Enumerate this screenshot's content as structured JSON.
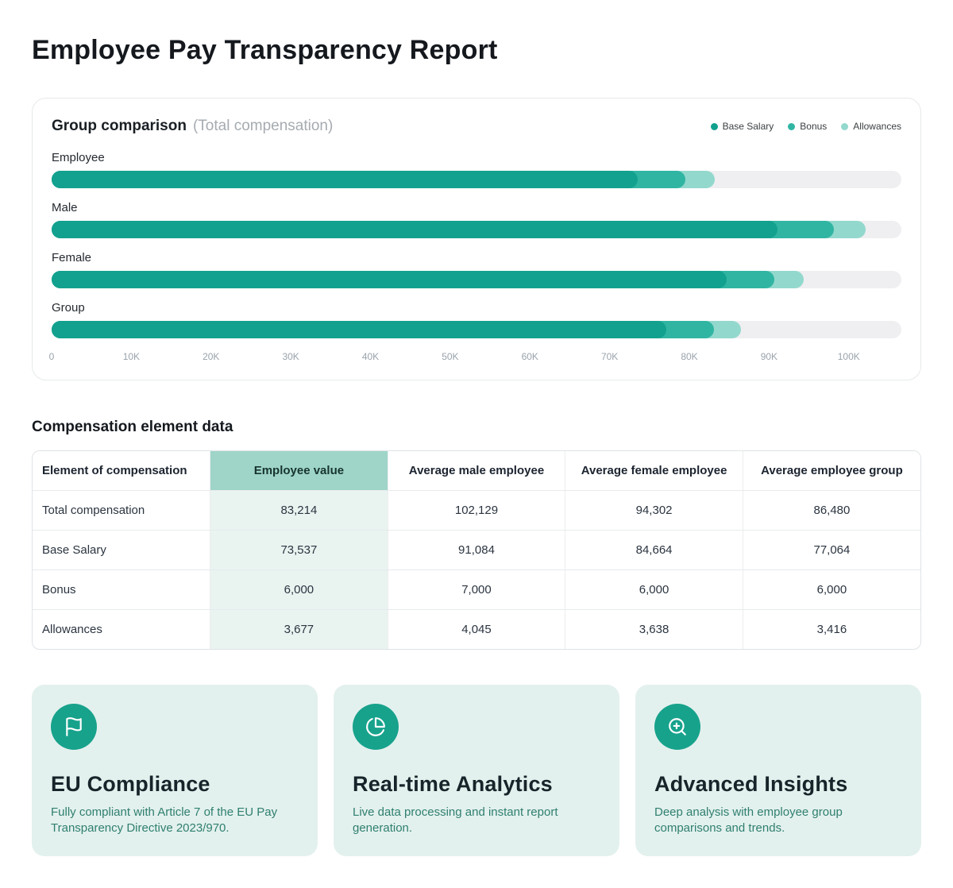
{
  "page": {
    "title": "Employee Pay Transparency Report"
  },
  "chart": {
    "title": "Group comparison",
    "subtitle": "(Total compensation)",
    "legend": [
      {
        "label": "Base Salary",
        "color": "#12a18e"
      },
      {
        "label": "Bonus",
        "color": "#31b5a3"
      },
      {
        "label": "Allowances",
        "color": "#93d8cd"
      }
    ]
  },
  "chart_data": {
    "type": "bar",
    "orientation": "horizontal",
    "stacked": true,
    "title": "Group comparison (Total compensation)",
    "categories": [
      "Employee",
      "Male",
      "Female",
      "Group"
    ],
    "series": [
      {
        "name": "Base Salary",
        "color": "#12a18e",
        "values": [
          73537,
          91084,
          84664,
          77064
        ]
      },
      {
        "name": "Bonus",
        "color": "#31b5a3",
        "values": [
          6000,
          7000,
          6000,
          6000
        ]
      },
      {
        "name": "Allowances",
        "color": "#93d8cd",
        "values": [
          3677,
          4045,
          3638,
          3416
        ]
      }
    ],
    "totals": [
      83214,
      102129,
      94302,
      86480
    ],
    "x_ticks": [
      "0",
      "10K",
      "20K",
      "30K",
      "40K",
      "50K",
      "60K",
      "70K",
      "80K",
      "90K",
      "100K"
    ],
    "x_tick_values": [
      0,
      10000,
      20000,
      30000,
      40000,
      50000,
      60000,
      70000,
      80000,
      90000,
      100000
    ],
    "axis_track_max": 106600,
    "track_color": "#efeff1",
    "grid": false,
    "legend_position": "top-right"
  },
  "table": {
    "section_title": "Compensation element data",
    "headers": [
      "Element of compensation",
      "Employee value",
      "Average male employee",
      "Average female employee",
      "Average employee group"
    ],
    "highlight_column": 1,
    "rows": [
      [
        "Total compensation",
        "83,214",
        "102,129",
        "94,302",
        "86,480"
      ],
      [
        "Base Salary",
        "73,537",
        "91,084",
        "84,664",
        "77,064"
      ],
      [
        "Bonus",
        "6,000",
        "7,000",
        "6,000",
        "6,000"
      ],
      [
        "Allowances",
        "3,677",
        "4,045",
        "3,638",
        "3,416"
      ]
    ]
  },
  "feature_cards": [
    {
      "icon": "flag-icon",
      "title": "EU Compliance",
      "description": "Fully compliant with Article 7 of the EU Pay Transparency Directive 2023/970."
    },
    {
      "icon": "pie-chart-icon",
      "title": "Real-time Analytics",
      "description": "Live data processing and instant report generation."
    },
    {
      "icon": "zoom-in-icon",
      "title": "Advanced Insights",
      "description": "Deep analysis with employee group comparisons and trends."
    }
  ]
}
